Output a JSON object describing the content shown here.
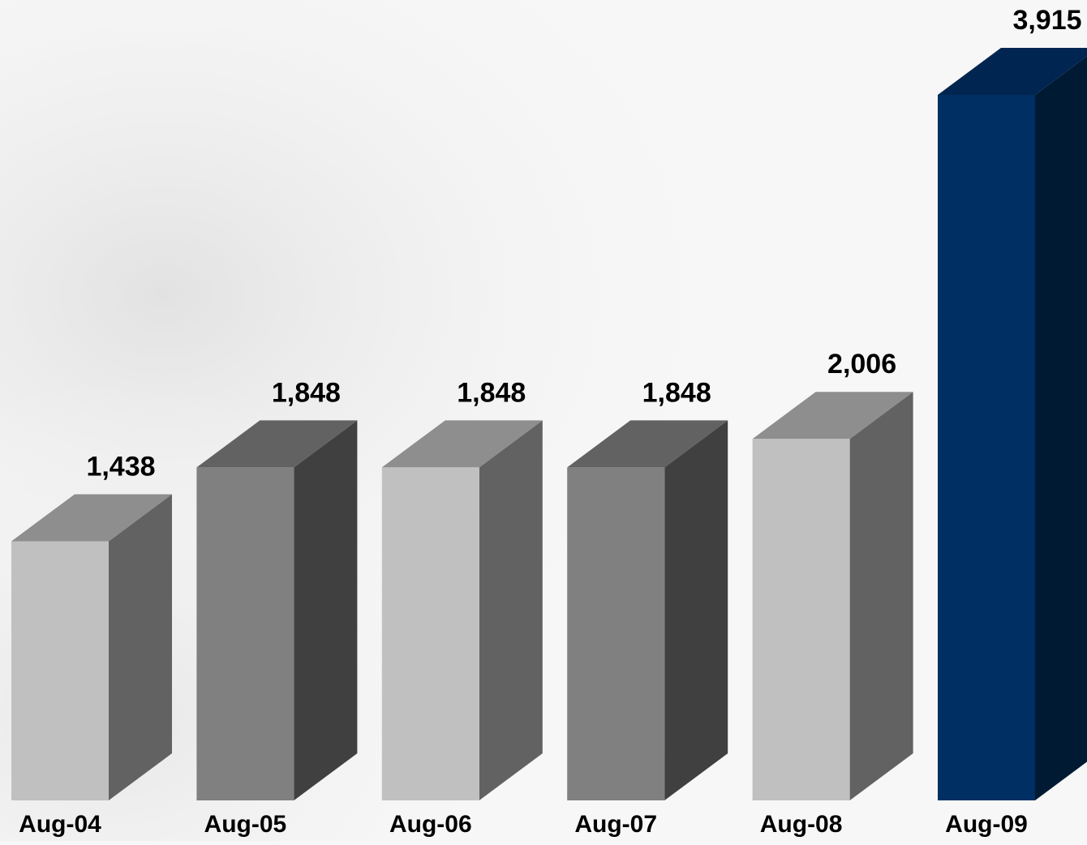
{
  "chart_data": {
    "type": "bar",
    "style": "3d",
    "categories": [
      "Aug-04",
      "Aug-05",
      "Aug-06",
      "Aug-07",
      "Aug-08",
      "Aug-09"
    ],
    "values": [
      1438,
      1848,
      1848,
      1848,
      2006,
      3915
    ],
    "value_labels": [
      "1,438",
      "1,848",
      "1,848",
      "1,848",
      "2,006",
      "3,915"
    ],
    "ylim": [
      0,
      3915
    ],
    "grid": false,
    "legend": "none",
    "bar_colors": [
      {
        "front": "#c0c0c0",
        "side": "#626262",
        "top": "#8e8e8e"
      },
      {
        "front": "#808080",
        "side": "#404040",
        "top": "#626262"
      },
      {
        "front": "#c0c0c0",
        "side": "#626262",
        "top": "#8e8e8e"
      },
      {
        "front": "#808080",
        "side": "#404040",
        "top": "#626262"
      },
      {
        "front": "#c0c0c0",
        "side": "#626262",
        "top": "#8e8e8e"
      },
      {
        "front": "#003063",
        "side": "#001a33",
        "top": "#002550"
      }
    ]
  }
}
